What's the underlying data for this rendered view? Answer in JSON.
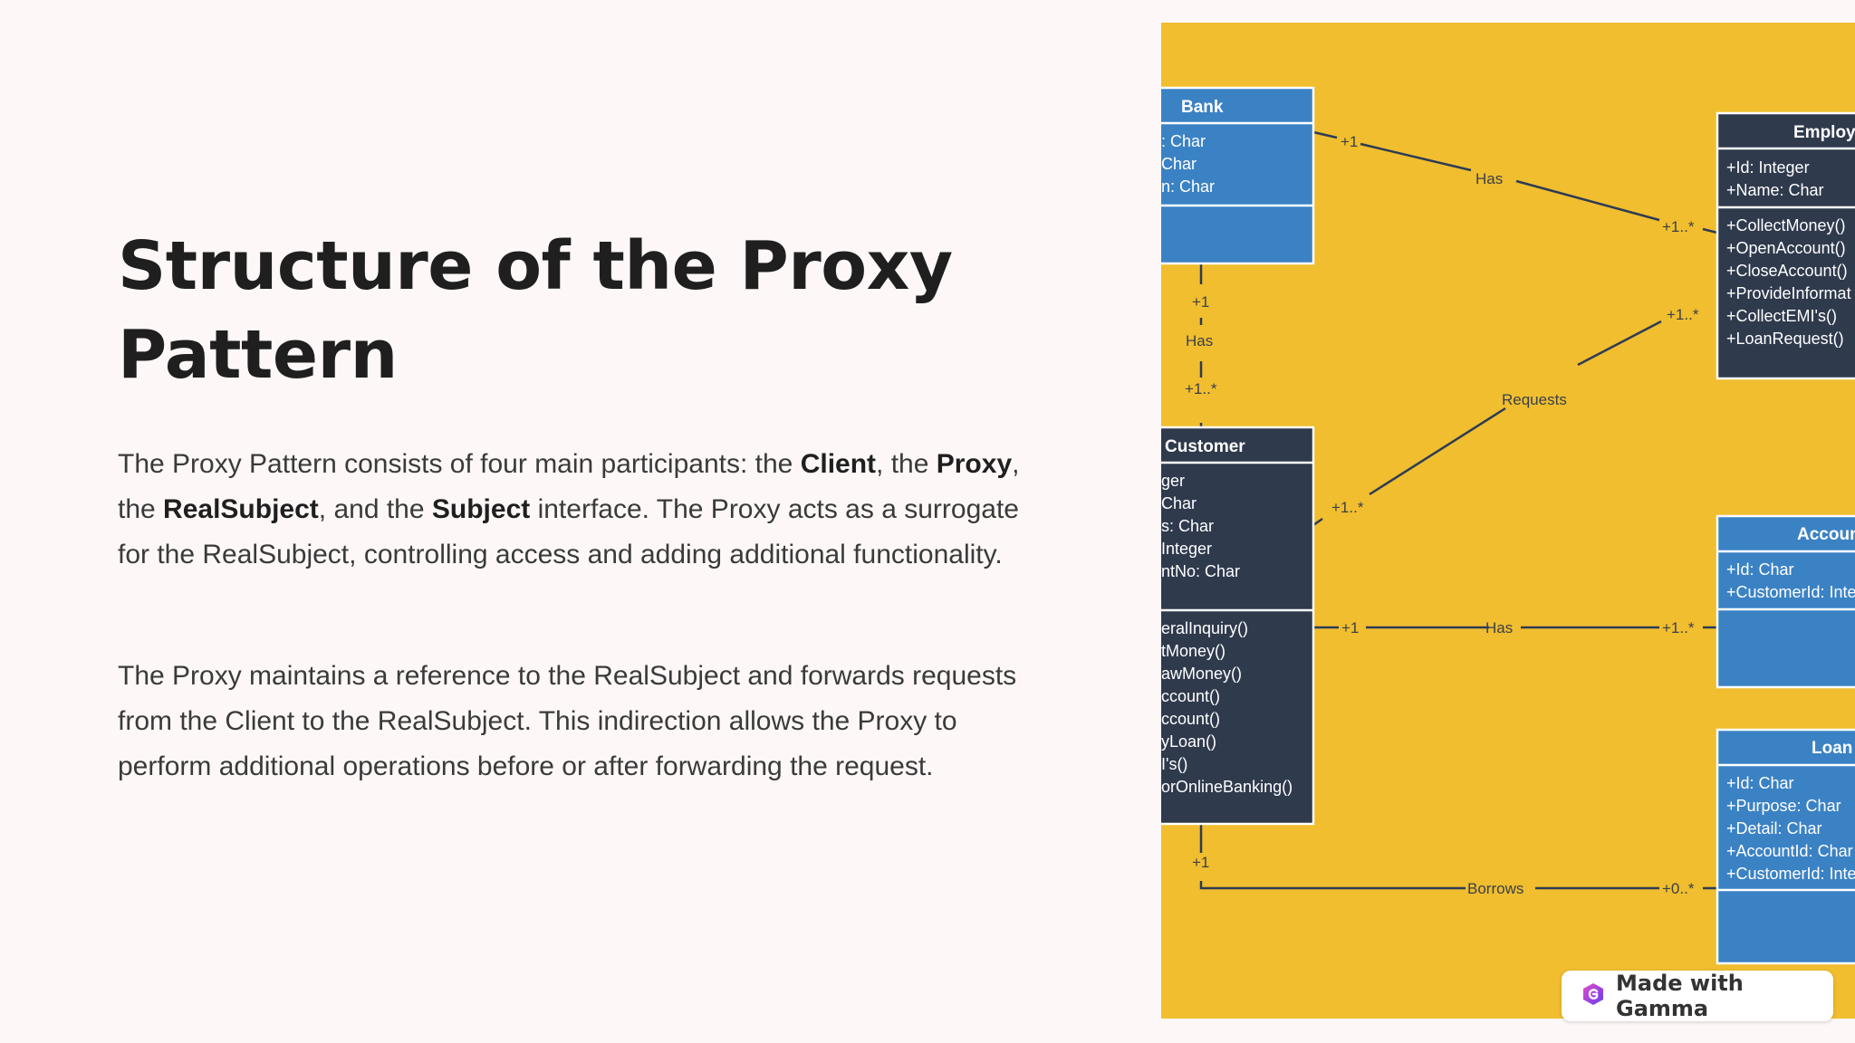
{
  "slide": {
    "title": "Structure of the Proxy Pattern",
    "p1": {
      "t1": "The Proxy Pattern consists of four main participants: the ",
      "b1": "Client",
      "t2": ", the ",
      "b2": "Proxy",
      "t3": ", the ",
      "b3": "RealSubject",
      "t4": ", and the ",
      "b4": "Subject",
      "t5": " interface. The Proxy acts as a surrogate for the RealSubject, controlling access and adding additional functionality."
    },
    "p2": "The Proxy maintains a reference to the RealSubject and forwards requests from the Client to the RealSubject. This indirection allows the Proxy to perform additional operations before or after forwarding the request."
  },
  "diagram": {
    "bank": {
      "title": "Bank",
      "attrs": [
        ": Char",
        "Char",
        "n: Char"
      ]
    },
    "customer": {
      "title": "Customer",
      "attrs": [
        "ger",
        "Char",
        "s: Char",
        "Integer",
        "ntNo: Char"
      ],
      "ops": [
        "eralInquiry()",
        "tMoney()",
        "awMoney()",
        "ccount()",
        "ccount()",
        "yLoan()",
        "I's()",
        "orOnlineBanking()"
      ]
    },
    "employee": {
      "title": "Employe",
      "attrs": [
        "+Id: Integer",
        "+Name: Char"
      ],
      "ops": [
        "+CollectMoney()",
        "+OpenAccount()",
        "+CloseAccount()",
        "+ProvideInformat",
        "+CollectEMI's()",
        "+LoanRequest()"
      ]
    },
    "account": {
      "title": "Accoun",
      "attrs": [
        "+Id: Char",
        "+CustomerId: Inte"
      ]
    },
    "loan": {
      "title": "Loan",
      "attrs": [
        "+Id: Char",
        "+Purpose: Char",
        "+Detail: Char",
        "+AccountId: Char",
        "+CustomerId: Inte"
      ]
    },
    "labels": {
      "bank_emp_has": "Has",
      "bank_emp_m1": "+1",
      "bank_emp_m2": "+1..*",
      "bank_cust_m1": "+1",
      "bank_cust_has": "Has",
      "bank_cust_m2": "+1..*",
      "requests": "Requests",
      "req_m1": "+1..*",
      "req_m2": "+1..*",
      "cust_acc_m1": "+1",
      "cust_acc_has": "Has",
      "cust_acc_m2": "+1..*",
      "borrow_m1": "+1",
      "borrows": "Borrows",
      "borrow_m2": "+0..*"
    },
    "colors": {
      "background": "#f0be2e",
      "blue_class": "#3b82c4",
      "dark_class": "#2f3a4d",
      "line": "#2e3b55"
    }
  },
  "badge": {
    "label": "Made with Gamma"
  }
}
